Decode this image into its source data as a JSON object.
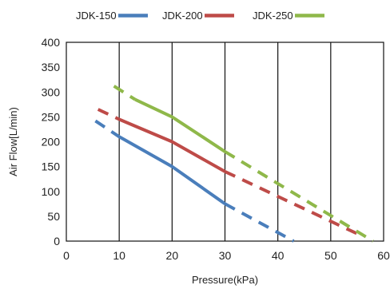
{
  "chart_data": {
    "type": "line",
    "title": "",
    "xlabel": "Pressure(kPa)",
    "ylabel": "Air Flow[L/min)",
    "xlim": [
      0,
      60
    ],
    "ylim": [
      0,
      400
    ],
    "x_ticks": [
      0,
      10,
      20,
      30,
      40,
      50,
      60
    ],
    "y_ticks": [
      0,
      50,
      100,
      150,
      200,
      250,
      300,
      350,
      400
    ],
    "grid": "vertical lines at x ticks",
    "legend": "top",
    "series": [
      {
        "name": "JDK-150",
        "color": "#4a7ebb",
        "solid": [
          [
            10,
            210
          ],
          [
            20,
            150
          ],
          [
            30,
            75
          ]
        ],
        "dashed": [
          [
            5.5,
            242
          ],
          [
            10,
            210
          ]
        ],
        "dashed_end": [
          [
            30,
            75
          ],
          [
            43,
            0
          ]
        ]
      },
      {
        "name": "JDK-200",
        "color": "#be4b48",
        "solid": [
          [
            10,
            245
          ],
          [
            20,
            200
          ],
          [
            30,
            140
          ]
        ],
        "dashed": [
          [
            6,
            265
          ],
          [
            10,
            245
          ]
        ],
        "dashed_end": [
          [
            30,
            140
          ],
          [
            55,
            15
          ]
        ]
      },
      {
        "name": "JDK-250",
        "color": "#8fb84a",
        "solid": [
          [
            13,
            285
          ],
          [
            20,
            250
          ],
          [
            30,
            180
          ]
        ],
        "dashed": [
          [
            9,
            312
          ],
          [
            13,
            285
          ]
        ],
        "dashed_end": [
          [
            30,
            180
          ],
          [
            58,
            0
          ]
        ]
      }
    ]
  },
  "legend_items": [
    {
      "label": "JDK-150",
      "color": "#4a7ebb"
    },
    {
      "label": "JDK-200",
      "color": "#be4b48"
    },
    {
      "label": "JDK-250",
      "color": "#8fb84a"
    }
  ],
  "labels": {
    "xlabel": "Pressure(kPa)",
    "ylabel": "Air Flow[L/min)"
  }
}
